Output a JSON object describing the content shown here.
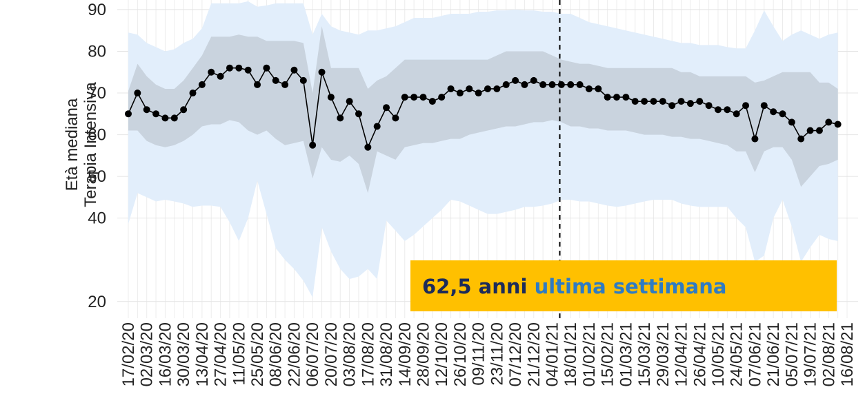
{
  "chart_data": {
    "type": "line",
    "ylabel": [
      "Età mediana",
      "Terapia Intensiva"
    ],
    "categories": [
      "17/02/20",
      null,
      "02/03/20",
      null,
      "16/03/20",
      null,
      "30/03/20",
      null,
      "13/04/20",
      null,
      "27/04/20",
      null,
      "11/05/20",
      null,
      "25/05/20",
      null,
      "08/06/20",
      null,
      "22/06/20",
      null,
      "06/07/20",
      null,
      "20/07/20",
      null,
      "03/08/20",
      null,
      "17/08/20",
      null,
      "31/08/20",
      null,
      "14/09/20",
      null,
      "28/09/20",
      null,
      "12/10/20",
      null,
      "26/10/20",
      null,
      "09/11/20",
      null,
      "23/11/20",
      null,
      "07/12/20",
      null,
      "21/12/20",
      null,
      "04/01/21",
      null,
      "18/01/21",
      null,
      "01/02/21",
      null,
      "15/02/21",
      null,
      "01/03/21",
      null,
      "15/03/21",
      null,
      "29/03/21",
      null,
      "12/04/21",
      null,
      "26/04/21",
      null,
      "10/05/21",
      null,
      "24/05/21",
      null,
      "07/06/21",
      null,
      "21/06/21",
      null,
      "05/07/21",
      null,
      "19/07/21",
      null,
      "02/08/21",
      null,
      "16/08/21"
    ],
    "series": [
      {
        "color": "#000000",
        "values": [
          65,
          70,
          66,
          65,
          64,
          64,
          66,
          70,
          72,
          75,
          74,
          76,
          76,
          75.5,
          72,
          76,
          73,
          72,
          75.5,
          73,
          57.5,
          75,
          69,
          64,
          68,
          65,
          57,
          62,
          66.5,
          64,
          69,
          69,
          69,
          68,
          69,
          71,
          70,
          71,
          70,
          71,
          71,
          72,
          73,
          72,
          73,
          72,
          72,
          72,
          72,
          72,
          71,
          71,
          69,
          69,
          69,
          68,
          68,
          68,
          68,
          67,
          68,
          67.5,
          68,
          67,
          66,
          66,
          65,
          67,
          59,
          67,
          65.5,
          65,
          63,
          59,
          61,
          61,
          63,
          62.5,
          null
        ]
      }
    ],
    "bands": [
      {
        "color": "#e2eefb",
        "upper": [
          84.5,
          84,
          82,
          81,
          80,
          80.5,
          82,
          83,
          85.5,
          91.5,
          91.5,
          91.5,
          91.5,
          92,
          90.7,
          91,
          91.5,
          91.5,
          91.5,
          91.5,
          84,
          89,
          86,
          85,
          84.5,
          84,
          85,
          85,
          85.5,
          86,
          87,
          88,
          88,
          88,
          88.5,
          89,
          89,
          89,
          89.5,
          89.5,
          89.8,
          89.8,
          90,
          89.8,
          89.8,
          89.5,
          89.5,
          89,
          89,
          88,
          87,
          86.5,
          86,
          85.5,
          85,
          84.5,
          84,
          83.5,
          83,
          82.5,
          82,
          82,
          81.5,
          81.5,
          81.5,
          81,
          80.7,
          80.7,
          85,
          89.8,
          86,
          82.5,
          84,
          85,
          84,
          83,
          84,
          84.5,
          null
        ],
        "lower": [
          38.6,
          46,
          45,
          44,
          44.4,
          44,
          43.5,
          42.7,
          43,
          43,
          42.7,
          39,
          34.5,
          40,
          49,
          41,
          32.8,
          30,
          27.8,
          25,
          21,
          37.8,
          32,
          27.8,
          25.4,
          26,
          27.8,
          25.4,
          39.4,
          37,
          34.5,
          36,
          38,
          40,
          42,
          44.4,
          44,
          43,
          42,
          41,
          41,
          41.5,
          42,
          42.7,
          42.7,
          43,
          43.5,
          44.4,
          44.4,
          44,
          44,
          43.5,
          43,
          42.7,
          43,
          43.5,
          44,
          44.4,
          44.4,
          44.4,
          43.5,
          43,
          42.7,
          42.7,
          42.7,
          42.7,
          40,
          37.8,
          29.5,
          31,
          40,
          44.4,
          38,
          29.5,
          33,
          36,
          35,
          34.5,
          null
        ]
      },
      {
        "color": "#c9d3de",
        "upper": [
          70.5,
          77,
          74,
          72,
          71,
          71,
          73,
          76,
          79,
          83.5,
          83.5,
          83.5,
          84,
          83.5,
          83.5,
          82.5,
          82.5,
          82.5,
          82.5,
          82,
          70,
          86,
          76,
          76,
          76,
          76,
          71,
          73,
          74,
          76,
          78,
          78,
          78,
          78,
          78,
          78,
          78,
          78,
          78,
          78,
          79,
          80,
          80,
          80,
          80,
          80,
          79,
          78,
          77.5,
          77,
          77,
          76.5,
          76,
          76,
          76,
          76,
          76,
          76,
          76,
          76,
          75,
          75,
          74,
          74,
          74,
          74,
          74,
          74,
          72.5,
          73,
          74,
          75,
          75,
          75,
          75,
          72.5,
          72.5,
          71,
          null
        ],
        "lower": [
          61,
          61,
          58.5,
          57.5,
          57,
          57.5,
          58.5,
          60,
          62,
          62.5,
          62.5,
          63.5,
          63,
          61,
          60,
          61,
          59,
          57.5,
          58,
          58.5,
          49.5,
          57,
          54,
          53.5,
          55,
          53,
          46,
          56,
          55,
          54,
          57,
          57.5,
          58,
          58,
          58.5,
          59,
          59,
          60,
          60.5,
          61,
          61.5,
          62,
          62,
          62.5,
          63,
          63,
          63.5,
          63,
          62,
          62,
          61.5,
          61.5,
          61,
          61,
          61,
          60.5,
          60,
          60,
          60,
          59.5,
          59.5,
          59,
          59,
          58.5,
          58,
          57.5,
          56,
          56,
          51,
          56,
          57,
          57,
          54,
          47.5,
          50,
          52.5,
          53,
          54,
          null
        ]
      }
    ],
    "ylim": [
      16,
      92.3
    ],
    "yticks": [
      20,
      40,
      50,
      60,
      70,
      80,
      90
    ],
    "grid": true,
    "annotation": {
      "highlight": "62,5 anni",
      "text": "ultima settimana",
      "color": "#ffc000"
    }
  }
}
